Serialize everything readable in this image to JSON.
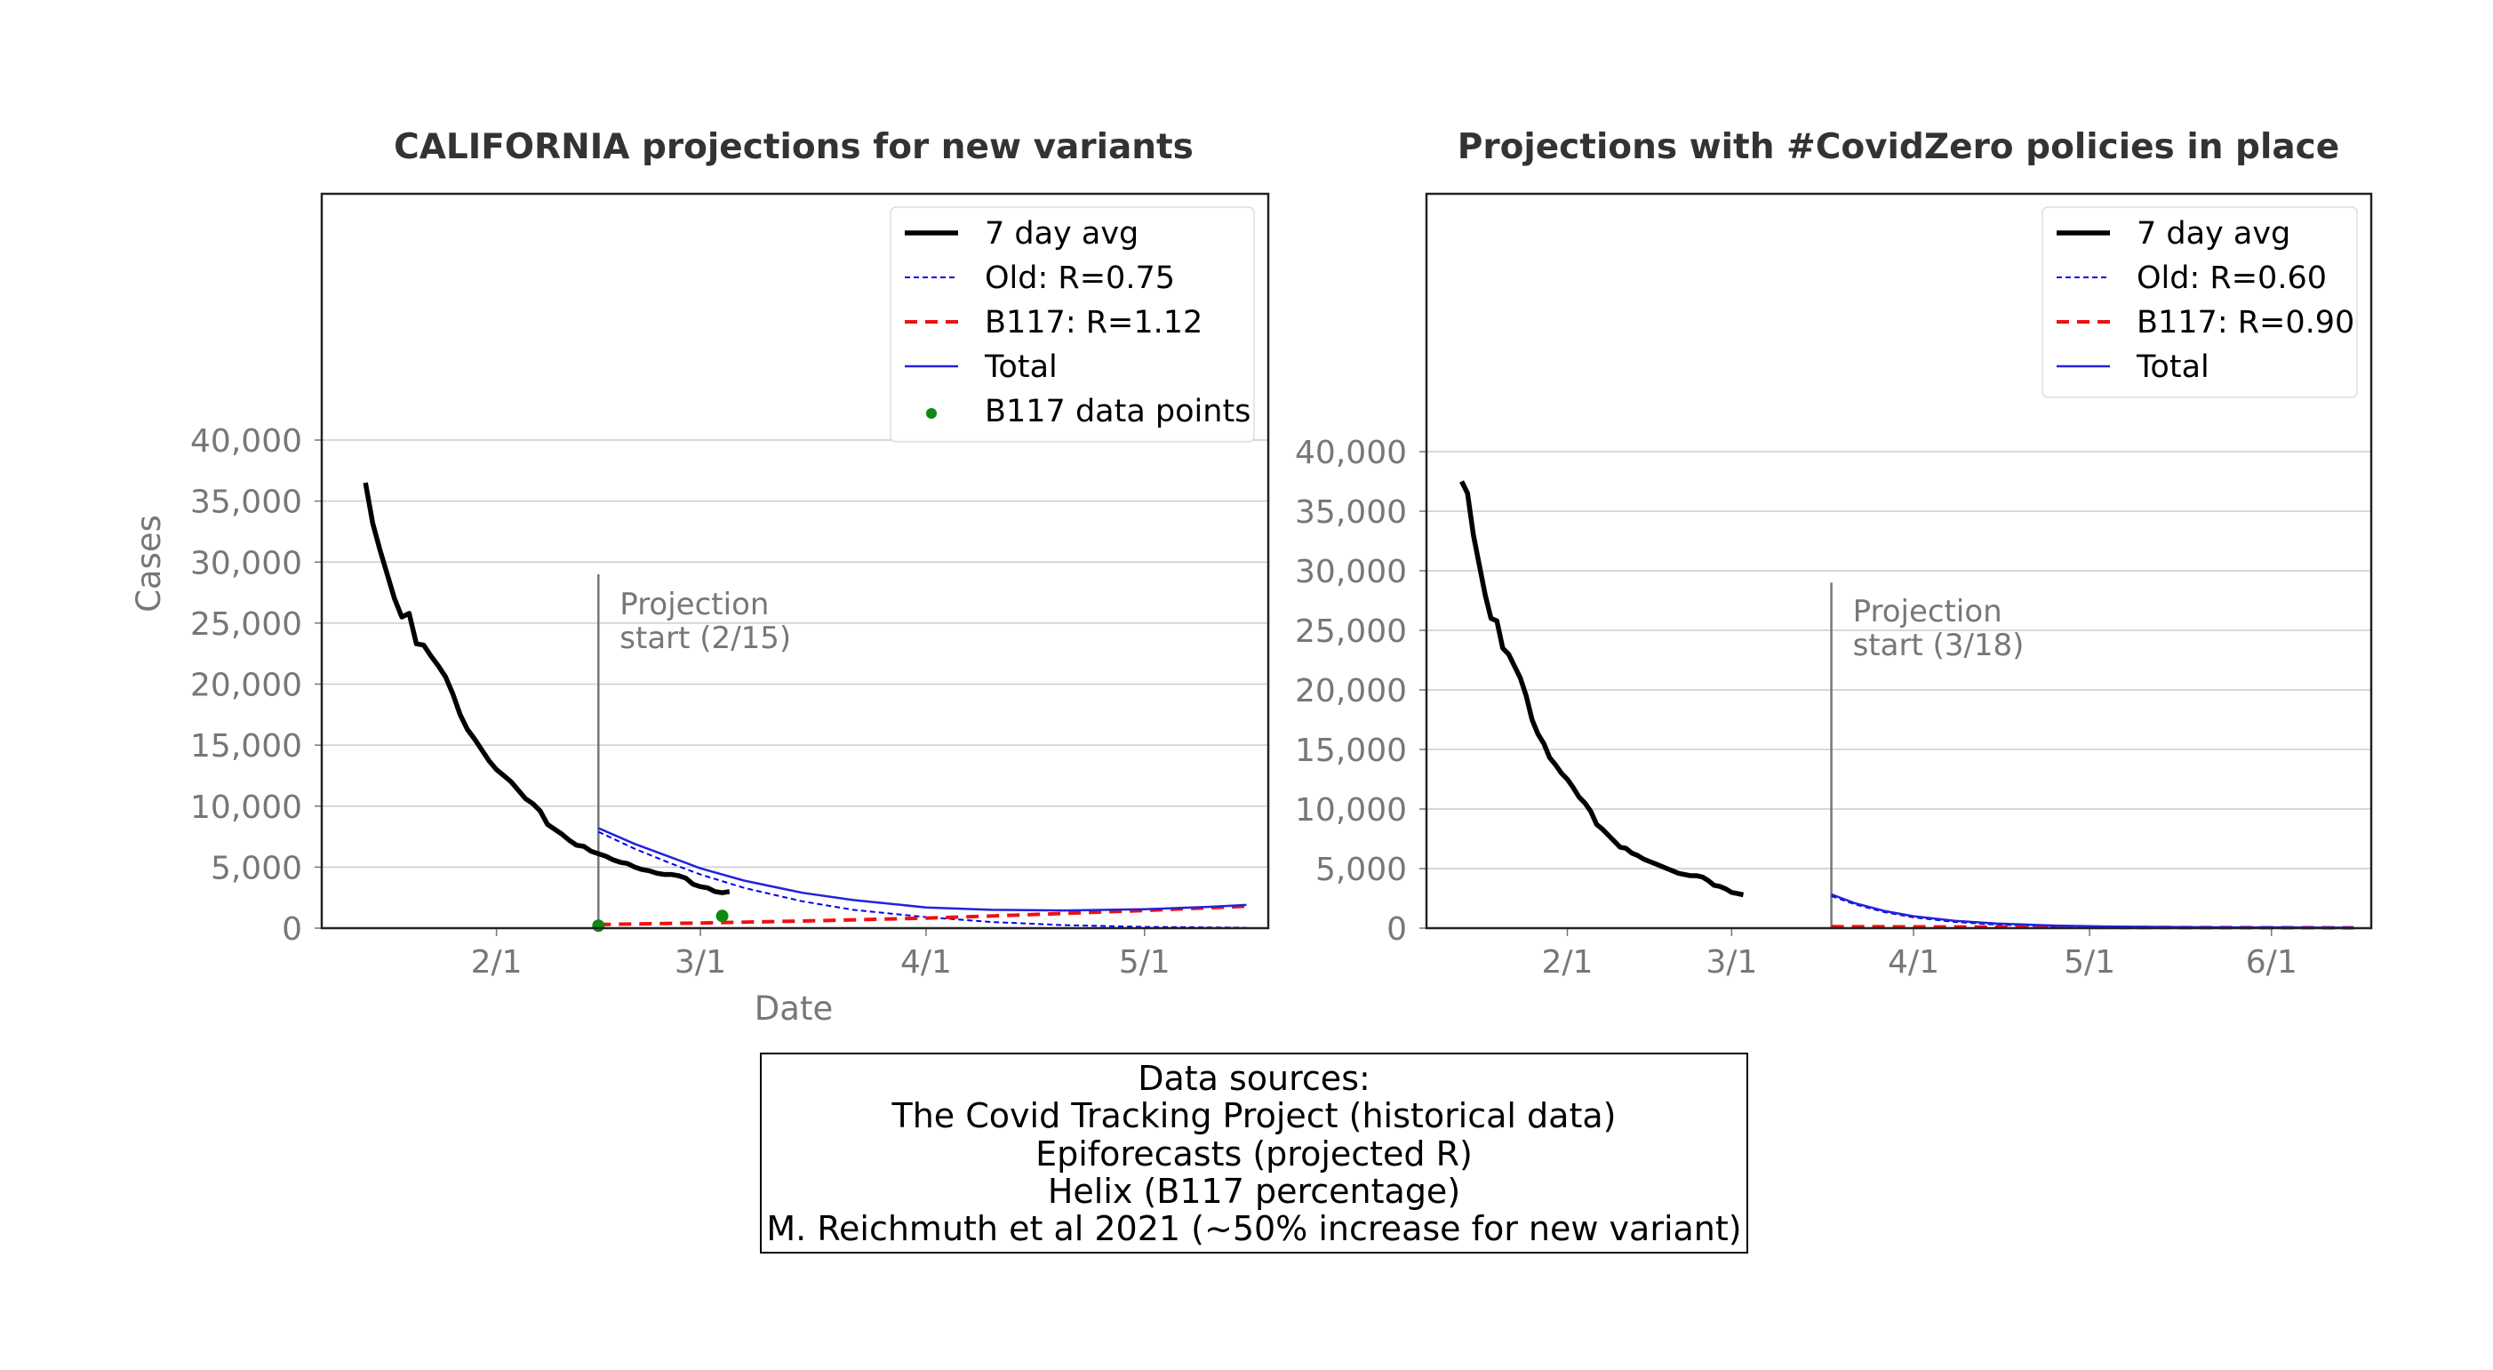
{
  "chart_data": [
    {
      "type": "line",
      "title": "CALIFORNIA projections for new variants",
      "xlabel": "Date",
      "ylabel": "Cases",
      "xlim": [
        "2021-01-08",
        "2021-05-18"
      ],
      "ylim": [
        0,
        40000
      ],
      "y_ticks": [
        0,
        5000,
        10000,
        15000,
        20000,
        25000,
        30000,
        35000,
        40000
      ],
      "y_tick_labels": [
        "0",
        "5,000",
        "10,000",
        "15,000",
        "20,000",
        "25,000",
        "30,000",
        "35,000",
        "40,000"
      ],
      "x_ticks": [
        "2021-02-01",
        "2021-03-01",
        "2021-04-01",
        "2021-05-01"
      ],
      "x_tick_labels": [
        "2/1",
        "3/1",
        "4/1",
        "5/1"
      ],
      "grid": "horizontal",
      "legend_position": "top-right",
      "annotation": {
        "date": "2021-02-15",
        "text_line1": "Projection",
        "text_line2": "start (2/15)"
      },
      "series": [
        {
          "name": "7 day avg",
          "style": "solid",
          "color": "#000000",
          "points": [
            [
              "2021-01-14",
              36500
            ],
            [
              "2021-01-15",
              33200
            ],
            [
              "2021-01-16",
              31000
            ],
            [
              "2021-01-17",
              29000
            ],
            [
              "2021-01-18",
              27000
            ],
            [
              "2021-01-19",
              25500
            ],
            [
              "2021-01-20",
              25800
            ],
            [
              "2021-01-21",
              23300
            ],
            [
              "2021-01-22",
              23200
            ],
            [
              "2021-01-23",
              22300
            ],
            [
              "2021-01-24",
              21500
            ],
            [
              "2021-01-25",
              20600
            ],
            [
              "2021-01-26",
              19200
            ],
            [
              "2021-01-27",
              17500
            ],
            [
              "2021-01-28",
              16300
            ],
            [
              "2021-01-29",
              15500
            ],
            [
              "2021-01-30",
              14600
            ],
            [
              "2021-01-31",
              13700
            ],
            [
              "2021-02-01",
              13000
            ],
            [
              "2021-02-02",
              12500
            ],
            [
              "2021-02-03",
              12000
            ],
            [
              "2021-02-04",
              11300
            ],
            [
              "2021-02-05",
              10600
            ],
            [
              "2021-02-06",
              10200
            ],
            [
              "2021-02-07",
              9600
            ],
            [
              "2021-02-08",
              8500
            ],
            [
              "2021-02-09",
              8100
            ],
            [
              "2021-02-10",
              7700
            ],
            [
              "2021-02-11",
              7200
            ],
            [
              "2021-02-12",
              6800
            ],
            [
              "2021-02-13",
              6700
            ],
            [
              "2021-02-14",
              6300
            ],
            [
              "2021-02-15",
              6100
            ],
            [
              "2021-02-16",
              5900
            ],
            [
              "2021-02-17",
              5600
            ],
            [
              "2021-02-18",
              5400
            ],
            [
              "2021-02-19",
              5300
            ],
            [
              "2021-02-20",
              5000
            ],
            [
              "2021-02-21",
              4800
            ],
            [
              "2021-02-22",
              4700
            ],
            [
              "2021-02-23",
              4500
            ],
            [
              "2021-02-24",
              4400
            ],
            [
              "2021-02-25",
              4400
            ],
            [
              "2021-02-26",
              4300
            ],
            [
              "2021-02-27",
              4100
            ],
            [
              "2021-02-28",
              3600
            ],
            [
              "2021-03-01",
              3400
            ],
            [
              "2021-03-02",
              3300
            ],
            [
              "2021-03-03",
              3000
            ],
            [
              "2021-03-04",
              2900
            ],
            [
              "2021-03-05",
              3000
            ]
          ]
        },
        {
          "name": "Old: R=0.75",
          "style": "dotted",
          "color": "#0000ee",
          "points": [
            [
              "2021-02-15",
              7900
            ],
            [
              "2021-02-20",
              6500
            ],
            [
              "2021-02-25",
              5300
            ],
            [
              "2021-03-01",
              4400
            ],
            [
              "2021-03-07",
              3300
            ],
            [
              "2021-03-15",
              2200
            ],
            [
              "2021-03-22",
              1500
            ],
            [
              "2021-04-01",
              900
            ],
            [
              "2021-04-10",
              500
            ],
            [
              "2021-04-20",
              250
            ],
            [
              "2021-05-01",
              100
            ],
            [
              "2021-05-15",
              40
            ]
          ]
        },
        {
          "name": "B117: R=1.12",
          "style": "dashed",
          "color": "#ee1111",
          "points": [
            [
              "2021-02-15",
              300
            ],
            [
              "2021-03-01",
              420
            ],
            [
              "2021-03-15",
              580
            ],
            [
              "2021-04-01",
              820
            ],
            [
              "2021-04-15",
              1100
            ],
            [
              "2021-05-01",
              1450
            ],
            [
              "2021-05-15",
              1800
            ]
          ]
        },
        {
          "name": "Total",
          "style": "solid",
          "color": "#2222dd",
          "points": [
            [
              "2021-02-15",
              8200
            ],
            [
              "2021-02-20",
              6900
            ],
            [
              "2021-02-25",
              5800
            ],
            [
              "2021-03-01",
              4900
            ],
            [
              "2021-03-07",
              3900
            ],
            [
              "2021-03-15",
              2900
            ],
            [
              "2021-03-22",
              2300
            ],
            [
              "2021-04-01",
              1700
            ],
            [
              "2021-04-10",
              1500
            ],
            [
              "2021-04-20",
              1450
            ],
            [
              "2021-05-01",
              1550
            ],
            [
              "2021-05-10",
              1750
            ],
            [
              "2021-05-15",
              1900
            ]
          ]
        },
        {
          "name": "B117 data points",
          "style": "points",
          "color": "#118811",
          "points": [
            [
              "2021-02-15",
              200
            ],
            [
              "2021-03-04",
              1000
            ]
          ]
        }
      ]
    },
    {
      "type": "line",
      "title": "Projections with #CovidZero policies in place",
      "xlabel": "",
      "ylabel": "",
      "xlim": [
        "2021-01-08",
        "2021-06-18"
      ],
      "ylim": [
        0,
        40000
      ],
      "y_ticks": [
        0,
        5000,
        10000,
        15000,
        20000,
        25000,
        30000,
        35000,
        40000
      ],
      "y_tick_labels": [
        "0",
        "5,000",
        "10,000",
        "15,000",
        "20,000",
        "25,000",
        "30,000",
        "35,000",
        "40,000"
      ],
      "x_ticks": [
        "2021-02-01",
        "2021-03-01",
        "2021-04-01",
        "2021-05-01",
        "2021-06-01"
      ],
      "x_tick_labels": [
        "2/1",
        "3/1",
        "4/1",
        "5/1",
        "6/1"
      ],
      "grid": "horizontal",
      "legend_position": "top-right",
      "annotation": {
        "date": "2021-03-18",
        "text_line1": "Projection",
        "text_line2": "start (3/18)"
      },
      "series": [
        {
          "name": "7 day avg",
          "style": "solid",
          "color": "#000000",
          "points": [
            [
              "2021-01-14",
              37500
            ],
            [
              "2021-01-15",
              36500
            ],
            [
              "2021-01-16",
              33000
            ],
            [
              "2021-01-17",
              30500
            ],
            [
              "2021-01-18",
              28000
            ],
            [
              "2021-01-19",
              26000
            ],
            [
              "2021-01-20",
              25800
            ],
            [
              "2021-01-21",
              23500
            ],
            [
              "2021-01-22",
              23000
            ],
            [
              "2021-01-23",
              22000
            ],
            [
              "2021-01-24",
              21000
            ],
            [
              "2021-01-25",
              19500
            ],
            [
              "2021-01-26",
              17500
            ],
            [
              "2021-01-27",
              16300
            ],
            [
              "2021-01-28",
              15500
            ],
            [
              "2021-01-29",
              14300
            ],
            [
              "2021-01-30",
              13700
            ],
            [
              "2021-01-31",
              13000
            ],
            [
              "2021-02-01",
              12500
            ],
            [
              "2021-02-02",
              11800
            ],
            [
              "2021-02-03",
              11000
            ],
            [
              "2021-02-04",
              10500
            ],
            [
              "2021-02-05",
              9800
            ],
            [
              "2021-02-06",
              8700
            ],
            [
              "2021-02-07",
              8300
            ],
            [
              "2021-02-08",
              7800
            ],
            [
              "2021-02-09",
              7300
            ],
            [
              "2021-02-10",
              6800
            ],
            [
              "2021-02-11",
              6700
            ],
            [
              "2021-02-12",
              6300
            ],
            [
              "2021-02-13",
              6100
            ],
            [
              "2021-02-14",
              5800
            ],
            [
              "2021-02-15",
              5600
            ],
            [
              "2021-02-16",
              5400
            ],
            [
              "2021-02-17",
              5200
            ],
            [
              "2021-02-18",
              5000
            ],
            [
              "2021-02-19",
              4800
            ],
            [
              "2021-02-20",
              4600
            ],
            [
              "2021-02-21",
              4500
            ],
            [
              "2021-02-22",
              4400
            ],
            [
              "2021-02-23",
              4400
            ],
            [
              "2021-02-24",
              4300
            ],
            [
              "2021-02-25",
              4000
            ],
            [
              "2021-02-26",
              3600
            ],
            [
              "2021-02-27",
              3500
            ],
            [
              "2021-02-28",
              3300
            ],
            [
              "2021-03-01",
              3000
            ],
            [
              "2021-03-02",
              2900
            ],
            [
              "2021-03-03",
              2800
            ]
          ]
        },
        {
          "name": "Old: R=0.60",
          "style": "dotted",
          "color": "#0000ee",
          "points": [
            [
              "2021-03-18",
              2700
            ],
            [
              "2021-03-22",
              2000
            ],
            [
              "2021-03-27",
              1350
            ],
            [
              "2021-04-01",
              900
            ],
            [
              "2021-04-08",
              520
            ],
            [
              "2021-04-15",
              300
            ],
            [
              "2021-04-25",
              140
            ],
            [
              "2021-05-05",
              60
            ],
            [
              "2021-05-20",
              20
            ],
            [
              "2021-06-15",
              5
            ]
          ]
        },
        {
          "name": "B117: R=0.90",
          "style": "dashed",
          "color": "#ee1111",
          "points": [
            [
              "2021-03-18",
              130
            ],
            [
              "2021-04-01",
              110
            ],
            [
              "2021-04-15",
              90
            ],
            [
              "2021-05-01",
              70
            ],
            [
              "2021-05-15",
              55
            ],
            [
              "2021-06-01",
              40
            ],
            [
              "2021-06-15",
              30
            ]
          ]
        },
        {
          "name": "Total",
          "style": "solid",
          "color": "#2222dd",
          "points": [
            [
              "2021-03-18",
              2830
            ],
            [
              "2021-03-22",
              2100
            ],
            [
              "2021-03-27",
              1450
            ],
            [
              "2021-04-01",
              1000
            ],
            [
              "2021-04-08",
              620
            ],
            [
              "2021-04-15",
              390
            ],
            [
              "2021-04-25",
              220
            ],
            [
              "2021-05-05",
              130
            ],
            [
              "2021-05-20",
              75
            ],
            [
              "2021-06-15",
              35
            ]
          ]
        }
      ]
    }
  ],
  "sources": {
    "heading": "Data sources:",
    "lines": [
      "The Covid Tracking Project (historical data)",
      "Epiforecasts (projected R)",
      "Helix (B117 percentage)",
      "M. Reichmuth et al 2021 (~50% increase for new variant)"
    ]
  }
}
